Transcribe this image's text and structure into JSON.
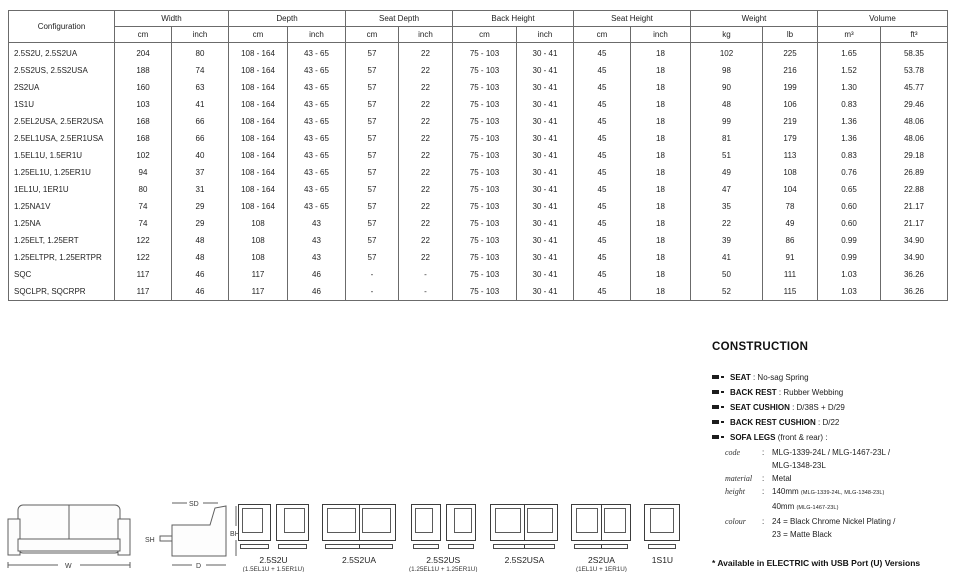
{
  "table": {
    "config_header": "Configuration",
    "col_groups": [
      {
        "label": "Width",
        "units": [
          "cm",
          "inch"
        ]
      },
      {
        "label": "Depth",
        "units": [
          "cm",
          "inch"
        ]
      },
      {
        "label": "Seat Depth",
        "units": [
          "cm",
          "inch"
        ]
      },
      {
        "label": "Back Height",
        "units": [
          "cm",
          "inch"
        ]
      },
      {
        "label": "Seat Height",
        "units": [
          "cm",
          "inch"
        ]
      },
      {
        "label": "Weight",
        "units": [
          "kg",
          "lb"
        ]
      },
      {
        "label": "Volume",
        "units": [
          "m³",
          "ft³"
        ]
      }
    ],
    "rows": [
      {
        "config": "2.5S2U, 2.5S2UA",
        "values": [
          "204",
          "80",
          "108 - 164",
          "43 - 65",
          "57",
          "22",
          "75 - 103",
          "30 - 41",
          "45",
          "18",
          "102",
          "225",
          "1.65",
          "58.35"
        ]
      },
      {
        "config": "2.5S2US, 2.5S2USA",
        "values": [
          "188",
          "74",
          "108 - 164",
          "43 - 65",
          "57",
          "22",
          "75 - 103",
          "30 - 41",
          "45",
          "18",
          "98",
          "216",
          "1.52",
          "53.78"
        ]
      },
      {
        "config": "2S2UA",
        "values": [
          "160",
          "63",
          "108 - 164",
          "43 - 65",
          "57",
          "22",
          "75 - 103",
          "30 - 41",
          "45",
          "18",
          "90",
          "199",
          "1.30",
          "45.77"
        ]
      },
      {
        "config": "1S1U",
        "values": [
          "103",
          "41",
          "108 - 164",
          "43 - 65",
          "57",
          "22",
          "75 - 103",
          "30 - 41",
          "45",
          "18",
          "48",
          "106",
          "0.83",
          "29.46"
        ]
      },
      {
        "config": "2.5EL2USA, 2.5ER2USA",
        "values": [
          "168",
          "66",
          "108 - 164",
          "43 - 65",
          "57",
          "22",
          "75 - 103",
          "30 - 41",
          "45",
          "18",
          "99",
          "219",
          "1.36",
          "48.06"
        ]
      },
      {
        "config": "2.5EL1USA, 2.5ER1USA",
        "values": [
          "168",
          "66",
          "108 - 164",
          "43 - 65",
          "57",
          "22",
          "75 - 103",
          "30 - 41",
          "45",
          "18",
          "81",
          "179",
          "1.36",
          "48.06"
        ]
      },
      {
        "config": "1.5EL1U, 1.5ER1U",
        "values": [
          "102",
          "40",
          "108 - 164",
          "43 - 65",
          "57",
          "22",
          "75 - 103",
          "30 - 41",
          "45",
          "18",
          "51",
          "113",
          "0.83",
          "29.18"
        ]
      },
      {
        "config": "1.25EL1U, 1.25ER1U",
        "values": [
          "94",
          "37",
          "108 - 164",
          "43 - 65",
          "57",
          "22",
          "75 - 103",
          "30 - 41",
          "45",
          "18",
          "49",
          "108",
          "0.76",
          "26.89"
        ]
      },
      {
        "config": "1EL1U, 1ER1U",
        "values": [
          "80",
          "31",
          "108 - 164",
          "43 - 65",
          "57",
          "22",
          "75 - 103",
          "30 - 41",
          "45",
          "18",
          "47",
          "104",
          "0.65",
          "22.88"
        ]
      },
      {
        "config": "1.25NA1V",
        "values": [
          "74",
          "29",
          "108 - 164",
          "43 - 65",
          "57",
          "22",
          "75 - 103",
          "30 - 41",
          "45",
          "18",
          "35",
          "78",
          "0.60",
          "21.17"
        ]
      },
      {
        "config": "1.25NA",
        "values": [
          "74",
          "29",
          "108",
          "43",
          "57",
          "22",
          "75 - 103",
          "30 - 41",
          "45",
          "18",
          "22",
          "49",
          "0.60",
          "21.17"
        ]
      },
      {
        "config": "1.25ELT, 1.25ERT",
        "values": [
          "122",
          "48",
          "108",
          "43",
          "57",
          "22",
          "75 - 103",
          "30 - 41",
          "45",
          "18",
          "39",
          "86",
          "0.99",
          "34.90"
        ]
      },
      {
        "config": "1.25ELTPR, 1.25ERTPR",
        "values": [
          "122",
          "48",
          "108",
          "43",
          "57",
          "22",
          "75 - 103",
          "30 - 41",
          "45",
          "18",
          "41",
          "91",
          "0.99",
          "34.90"
        ]
      },
      {
        "config": "SQC",
        "values": [
          "117",
          "46",
          "117",
          "46",
          "-",
          "-",
          "75 - 103",
          "30 - 41",
          "45",
          "18",
          "50",
          "111",
          "1.03",
          "36.26"
        ]
      },
      {
        "config": "SQCLPR, SQCRPR",
        "values": [
          "117",
          "46",
          "117",
          "46",
          "-",
          "-",
          "75 - 103",
          "30 - 41",
          "45",
          "18",
          "52",
          "115",
          "1.03",
          "36.26"
        ]
      }
    ]
  },
  "construction": {
    "title": "CONSTRUCTION",
    "items": [
      {
        "label": "SEAT",
        "text": ": No-sag Spring"
      },
      {
        "label": "BACK REST",
        "text": ": Rubber Webbing"
      },
      {
        "label": "SEAT CUSHION",
        "text": ": D/38S + D/29"
      },
      {
        "label": "BACK REST CUSHION",
        "text": ": D/22"
      },
      {
        "label": "SOFA LEGS",
        "text": "(front & rear) :"
      }
    ],
    "sofa_legs": [
      {
        "key": "code",
        "lines": [
          {
            "main": "MLG-1339-24L / MLG-1467-23L /",
            "small": ""
          },
          {
            "main": "MLG-1348-23L",
            "small": ""
          }
        ]
      },
      {
        "key": "material",
        "lines": [
          {
            "main": "Metal",
            "small": ""
          }
        ]
      },
      {
        "key": "height",
        "lines": [
          {
            "main": "140mm ",
            "small": "(MLG-1339-24L, MLG-1348-23L)"
          },
          {
            "main": "40mm ",
            "small": "(MLG-1467-23L)"
          }
        ]
      },
      {
        "key": "colour",
        "lines": [
          {
            "main": "24 = Black Chrome Nickel Plating /",
            "small": ""
          },
          {
            "main": "23 = Matte Black",
            "small": ""
          }
        ]
      }
    ],
    "footnote": "* Available in ELECTRIC with USB Port (U) Versions"
  },
  "dimension_diagram": {
    "labels": {
      "w": "W",
      "sd": "SD",
      "sh": "SH",
      "bh": "BH",
      "d": "D"
    }
  },
  "configurations": [
    {
      "label": "2.5S2U",
      "sublabel": "(1.5EL1U + 1.5ER1U)",
      "type": "pair"
    },
    {
      "label": "2.5S2UA",
      "sublabel": "",
      "type": "joined"
    },
    {
      "label": "2.5S2US",
      "sublabel": "(1.25EL1U + 1.25ER1U)",
      "type": "pair"
    },
    {
      "label": "2.5S2USA",
      "sublabel": "",
      "type": "joined"
    },
    {
      "label": "2S2UA",
      "sublabel": "(1EL1U + 1ER1U)",
      "type": "joined"
    },
    {
      "label": "1S1U",
      "sublabel": "",
      "type": "single"
    }
  ],
  "colors": {
    "line": "#6b6b6b",
    "text": "#1a1a1a"
  }
}
